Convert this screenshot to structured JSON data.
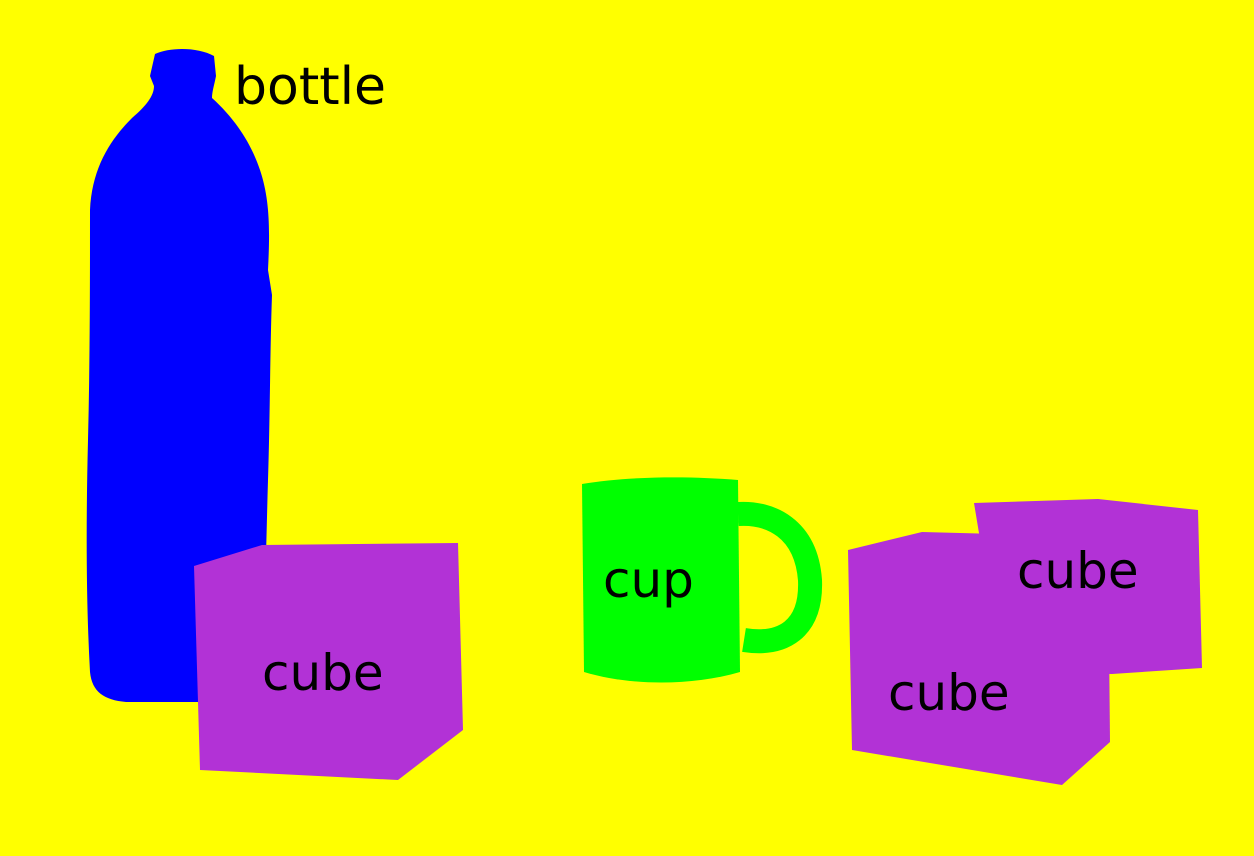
{
  "scene": {
    "background_color": "#ffff00",
    "objects": [
      {
        "id": "bottle",
        "label": "bottle",
        "color": "#0000ff"
      },
      {
        "id": "cube-left",
        "label": "cube",
        "color": "#b232d6"
      },
      {
        "id": "cup",
        "label": "cup",
        "color": "#00ff00"
      },
      {
        "id": "cube-back-right",
        "label": "cube",
        "color": "#b232d6"
      },
      {
        "id": "cube-front-right",
        "label": "cube",
        "color": "#b232d6"
      }
    ]
  }
}
